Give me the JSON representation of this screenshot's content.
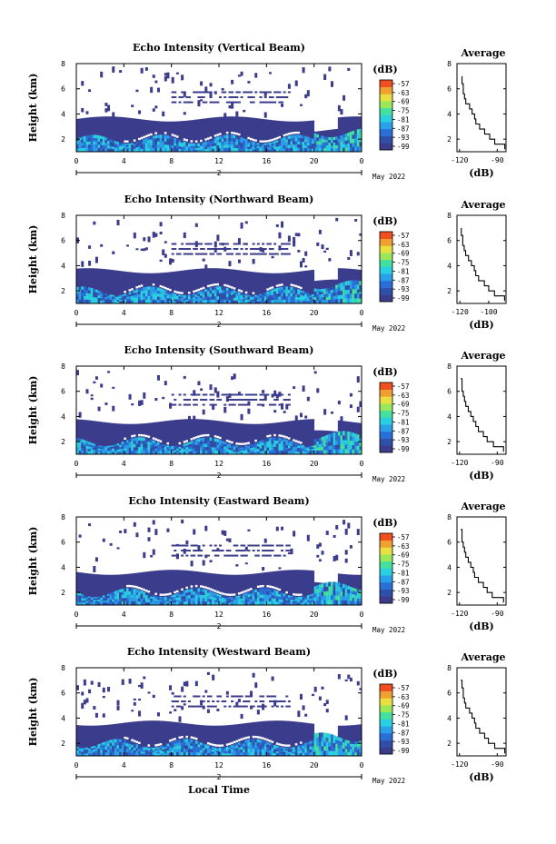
{
  "figure": {
    "x_axis_label": "Local Time",
    "colorbar_label": "(dB)",
    "colorbar_ticks": [
      "-57",
      "-63",
      "-69",
      "-75",
      "-81",
      "-87",
      "-93",
      "-99"
    ],
    "colormap": [
      "#3b3c8c",
      "#2f4fa8",
      "#2a6fd6",
      "#2aa0e8",
      "#2ad0e0",
      "#44e0a0",
      "#9ae85a",
      "#e8e040",
      "#f0a030",
      "#f05020"
    ],
    "avg_title": "Average",
    "avg_xlabel": "(dB)",
    "date_day": "2",
    "date_month": "May 2022"
  },
  "chart_data": [
    {
      "type": "heatmap",
      "title": "Echo Intensity (Vertical Beam)",
      "ylabel": "Height (km)",
      "x_ticks": [
        "0",
        "4",
        "8",
        "12",
        "16",
        "20",
        "0"
      ],
      "y_ticks": [
        "2",
        "4",
        "6",
        "8"
      ],
      "xlim": [
        0,
        24
      ],
      "ylim": [
        1,
        8
      ],
      "avg": {
        "title": "Average",
        "xlabel": "(dB)",
        "x_ticks": [
          "-120",
          "-90"
        ],
        "y_ticks": [
          "2",
          "4",
          "6",
          "8"
        ],
        "xlim": [
          -122,
          -83
        ],
        "ylim": [
          1,
          8
        ],
        "x": [
          -84,
          -92,
          -96,
          -100,
          -104,
          -107,
          -108,
          -110,
          -112,
          -115,
          -116,
          -117,
          -117,
          -118,
          -118
        ],
        "y": [
          1.2,
          1.6,
          2.0,
          2.4,
          2.8,
          3.2,
          3.6,
          4.0,
          4.4,
          4.8,
          5.2,
          5.6,
          6.0,
          6.4,
          7.0
        ]
      }
    },
    {
      "type": "heatmap",
      "title": "Echo Intensity (Northward Beam)",
      "ylabel": "Height (km)",
      "x_ticks": [
        "0",
        "4",
        "8",
        "12",
        "16",
        "20",
        "0"
      ],
      "y_ticks": [
        "2",
        "4",
        "6",
        "8"
      ],
      "xlim": [
        0,
        24
      ],
      "ylim": [
        1,
        8
      ],
      "avg": {
        "title": "Average",
        "xlabel": "(dB)",
        "x_ticks": [
          "-120",
          "-100"
        ],
        "y_ticks": [
          "2",
          "4",
          "6",
          "8"
        ],
        "xlim": [
          -122,
          -88
        ],
        "ylim": [
          1,
          8
        ],
        "x": [
          -89,
          -96,
          -100,
          -103,
          -107,
          -109,
          -110,
          -112,
          -114,
          -116,
          -117,
          -118,
          -118,
          -119,
          -119
        ],
        "y": [
          1.2,
          1.6,
          2.0,
          2.4,
          2.8,
          3.2,
          3.6,
          4.0,
          4.4,
          4.8,
          5.2,
          5.6,
          6.0,
          6.4,
          7.0
        ]
      }
    },
    {
      "type": "heatmap",
      "title": "Echo Intensity (Southward Beam)",
      "ylabel": "Height (km)",
      "x_ticks": [
        "0",
        "4",
        "8",
        "12",
        "16",
        "20",
        "0"
      ],
      "y_ticks": [
        "2",
        "4",
        "6",
        "8"
      ],
      "xlim": [
        0,
        24
      ],
      "ylim": [
        1,
        8
      ],
      "avg": {
        "title": "Average",
        "xlabel": "(dB)",
        "x_ticks": [
          "-120",
          "-90"
        ],
        "y_ticks": [
          "2",
          "4",
          "6",
          "8"
        ],
        "xlim": [
          -122,
          -83
        ],
        "ylim": [
          1,
          8
        ],
        "x": [
          -85,
          -93,
          -98,
          -101,
          -105,
          -107,
          -109,
          -111,
          -113,
          -115,
          -116,
          -117,
          -118,
          -118,
          -119
        ],
        "y": [
          1.2,
          1.6,
          2.0,
          2.4,
          2.8,
          3.2,
          3.6,
          4.0,
          4.4,
          4.8,
          5.2,
          5.6,
          6.0,
          6.4,
          7.0
        ]
      }
    },
    {
      "type": "heatmap",
      "title": "Echo Intensity (Eastward Beam)",
      "ylabel": "Height (km)",
      "x_ticks": [
        "0",
        "4",
        "8",
        "12",
        "16",
        "20",
        "0"
      ],
      "y_ticks": [
        "2",
        "4",
        "6",
        "8"
      ],
      "xlim": [
        0,
        24
      ],
      "ylim": [
        1,
        8
      ],
      "avg": {
        "title": "Average",
        "xlabel": "(dB)",
        "x_ticks": [
          "-120",
          "-90"
        ],
        "y_ticks": [
          "2",
          "4",
          "6",
          "8"
        ],
        "xlim": [
          -122,
          -83
        ],
        "ylim": [
          1,
          8
        ],
        "x": [
          -85,
          -94,
          -98,
          -101,
          -105,
          -108,
          -109,
          -111,
          -113,
          -115,
          -116,
          -117,
          -118,
          -118,
          -119
        ],
        "y": [
          1.2,
          1.6,
          2.0,
          2.4,
          2.8,
          3.2,
          3.6,
          4.0,
          4.4,
          4.8,
          5.2,
          5.6,
          6.0,
          6.4,
          7.0
        ]
      }
    },
    {
      "type": "heatmap",
      "title": "Echo Intensity (Westward Beam)",
      "ylabel": "Height (km)",
      "x_ticks": [
        "0",
        "4",
        "8",
        "12",
        "16",
        "20",
        "0"
      ],
      "y_ticks": [
        "2",
        "4",
        "6",
        "8"
      ],
      "xlim": [
        0,
        24
      ],
      "ylim": [
        1,
        8
      ],
      "avg": {
        "title": "Average",
        "xlabel": "(dB)",
        "x_ticks": [
          "-120",
          "-90"
        ],
        "y_ticks": [
          "2",
          "4",
          "6",
          "8"
        ],
        "xlim": [
          -122,
          -83
        ],
        "ylim": [
          1,
          8
        ],
        "x": [
          -84,
          -92,
          -97,
          -100,
          -104,
          -107,
          -108,
          -110,
          -112,
          -115,
          -116,
          -117,
          -117,
          -118,
          -119
        ],
        "y": [
          1.2,
          1.6,
          2.0,
          2.4,
          2.8,
          3.2,
          3.6,
          4.0,
          4.4,
          4.8,
          5.2,
          5.6,
          6.0,
          6.4,
          7.0
        ]
      }
    }
  ]
}
